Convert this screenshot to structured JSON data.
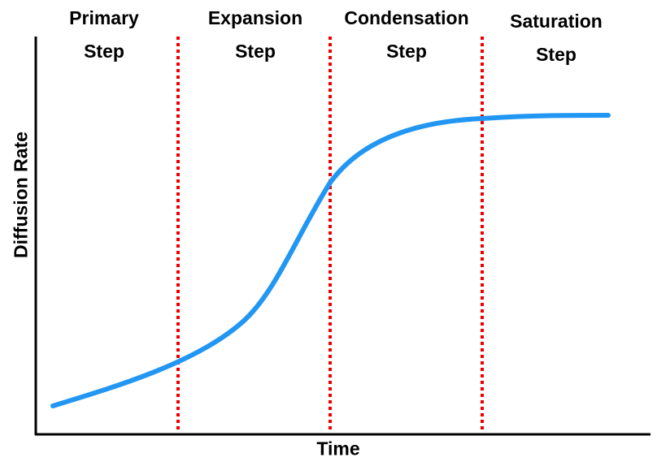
{
  "phases": [
    "Primary Step",
    "Expansion Step",
    "Condensation Step",
    "Saturation Step"
  ],
  "x_axis_label": "Time",
  "y_axis_label": "Diffusion Rate"
}
